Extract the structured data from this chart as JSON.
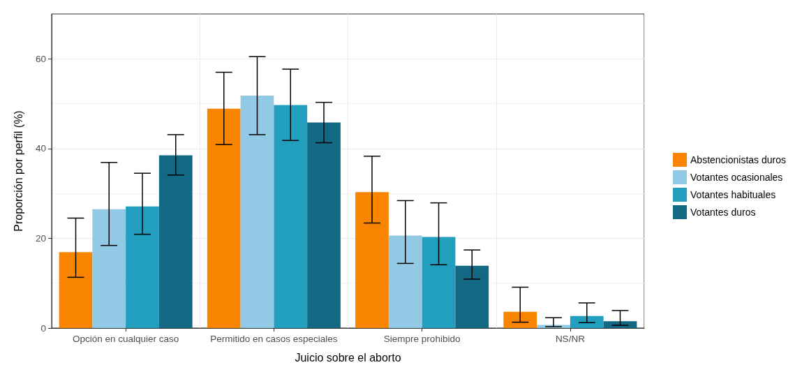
{
  "chart_data": {
    "type": "bar",
    "xlabel": "Juicio sobre el aborto",
    "ylabel": "Proporción por perfil (%)",
    "categories": [
      "Opción en cualquier caso",
      "Permitido en casos especiales",
      "Siempre prohibido",
      "NS/NR"
    ],
    "series": [
      {
        "name": "Abstencionistas duros",
        "color": "#f98400",
        "values": [
          16.9,
          48.9,
          30.3,
          3.6
        ],
        "errors": [
          [
            11.3,
            24.5
          ],
          [
            40.9,
            57.0
          ],
          [
            23.4,
            38.3
          ],
          [
            1.3,
            9.1
          ]
        ]
      },
      {
        "name": "Votantes ocasionales",
        "color": "#92c9e5",
        "values": [
          26.5,
          51.8,
          20.6,
          0.7
        ],
        "errors": [
          [
            18.4,
            36.9
          ],
          [
            43.1,
            60.5
          ],
          [
            14.4,
            28.4
          ],
          [
            0.3,
            2.3
          ]
        ]
      },
      {
        "name": "Votantes habituales",
        "color": "#229fbe",
        "values": [
          27.1,
          49.7,
          20.3,
          2.7
        ],
        "errors": [
          [
            20.9,
            34.5
          ],
          [
            41.8,
            57.7
          ],
          [
            14.1,
            27.9
          ],
          [
            1.2,
            5.6
          ]
        ]
      },
      {
        "name": "Votantes duros",
        "color": "#136884",
        "values": [
          38.5,
          45.8,
          13.9,
          1.5
        ],
        "errors": [
          [
            34.1,
            43.1
          ],
          [
            41.3,
            50.3
          ],
          [
            10.9,
            17.4
          ],
          [
            0.6,
            3.9
          ]
        ]
      }
    ],
    "ylim": [
      0,
      70
    ],
    "yticks": [
      0,
      20,
      40,
      60
    ],
    "grid": true,
    "legend": "right"
  }
}
